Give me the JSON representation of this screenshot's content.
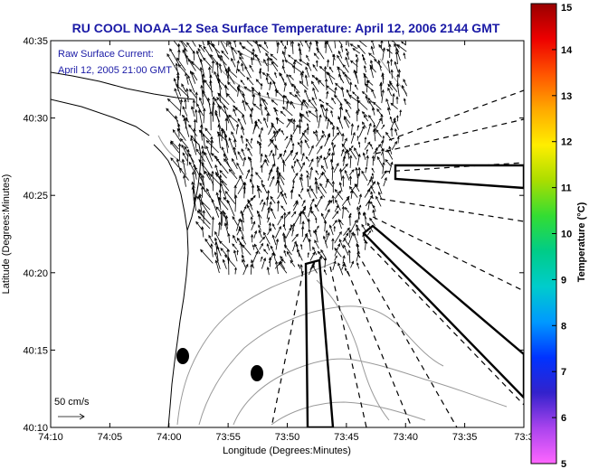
{
  "chart_data": {
    "type": "map",
    "title": "RU COOL  NOAA–12  Sea Surface Temperature:  April 12, 2006 2144 GMT",
    "xlabel": "Longitude (Degrees:Minutes)",
    "ylabel": "Latitude (Degrees:Minutes)",
    "x_ticks": [
      "74:10",
      "74:05",
      "74:00",
      "73:55",
      "73:50",
      "73:45",
      "73:40",
      "73:35",
      "73:3"
    ],
    "y_ticks": [
      "40:10",
      "40:15",
      "40:20",
      "40:25",
      "40:30",
      "40:35"
    ],
    "annotation": [
      "Raw Surface Current:",
      "April 12, 2005 21:00 GMT"
    ],
    "scale_label": "50 cm/s",
    "colorbar": {
      "label": "Temperature (°C)",
      "ticks": [
        "5",
        "6",
        "7",
        "8",
        "9",
        "10",
        "11",
        "12",
        "13",
        "14",
        "15"
      ],
      "range": [
        5,
        15
      ],
      "colors": [
        "#ff66ff",
        "#aa44ee",
        "#3322cc",
        "#0033ff",
        "#0099ff",
        "#00cccc",
        "#00cc88",
        "#33dd33",
        "#aadd00",
        "#ffee00",
        "#ffaa00",
        "#ff5500",
        "#ee0000",
        "#990000"
      ]
    },
    "grid": false,
    "legend": "none"
  }
}
